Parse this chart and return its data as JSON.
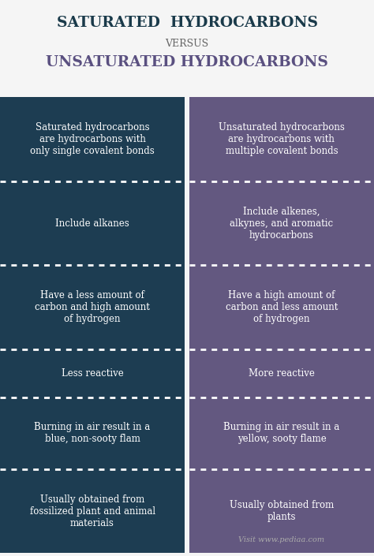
{
  "title1": "SATURATED  HYDROCARBONS",
  "title_versus": "VERSUS",
  "title2": "UNSATURATED HYDROCARBONS",
  "title1_color": "#1a3a4a",
  "title2_color": "#5a5080",
  "versus_color": "#666666",
  "col1_color": "#1d3d52",
  "col2_color": "#635880",
  "text_color": "#ffffff",
  "footer_color": "#aaaaaa",
  "footer_text": "Visit www.pediaa.com",
  "bg_color": "#f5f5f5",
  "rows": [
    {
      "left": "Saturated hydrocarbons\nare hydrocarbons with\nonly single covalent bonds",
      "right": "Unsaturated hydrocarbons\nare hydrocarbons with\nmultiple covalent bonds"
    },
    {
      "left": "Include alkanes",
      "right": "Include alkenes,\nalkynes, and aromatic\nhydrocarbons"
    },
    {
      "left": "Have a less amount of\ncarbon and high amount\nof hydrogen",
      "right": "Have a high amount of\ncarbon and less amount\nof hydrogen"
    },
    {
      "left": "Less reactive",
      "right": "More reactive"
    },
    {
      "left": "Burning in air result in a\nblue, non-sooty flam",
      "right": "Burning in air result in a\nyellow, sooty flame"
    },
    {
      "left": "Usually obtained from\nfossilized plant and animal\nmaterials",
      "right": "Usually obtained from\nplants"
    }
  ],
  "row_heights_rel": [
    1.4,
    1.4,
    1.4,
    0.8,
    1.2,
    1.4
  ]
}
